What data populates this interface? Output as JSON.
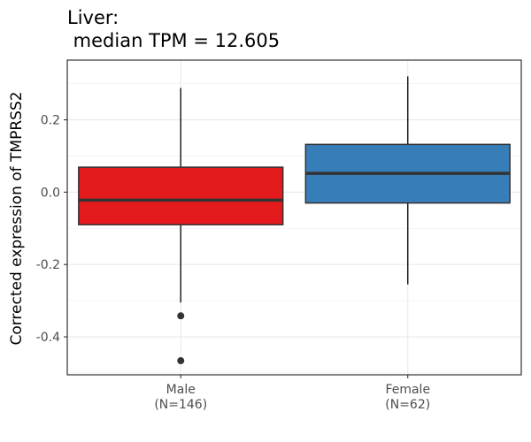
{
  "chart_data": {
    "type": "boxplot",
    "title_line1": "Liver:",
    "title_line2": " median TPM = 12.605",
    "xlabel": "",
    "ylabel": "Corrected expression of TMPRSS2",
    "ylim": [
      -0.505,
      0.365
    ],
    "yticks": [
      -0.4,
      -0.2,
      0.0,
      0.2
    ],
    "ytick_labels": [
      "-0.4",
      "-0.2",
      "0.0",
      "0.2"
    ],
    "grid": true,
    "categories": [
      {
        "label": "Male",
        "sublabel": "(N=146)",
        "color": "#E41A1C",
        "whisker_low": -0.305,
        "q1": -0.09,
        "median": -0.022,
        "q3": 0.069,
        "whisker_high": 0.288,
        "outliers": [
          -0.342,
          -0.466
        ]
      },
      {
        "label": "Female",
        "sublabel": "(N=62)",
        "color": "#377EB8",
        "whisker_low": -0.255,
        "q1": -0.03,
        "median": 0.052,
        "q3": 0.132,
        "whisker_high": 0.32,
        "outliers": []
      }
    ]
  }
}
